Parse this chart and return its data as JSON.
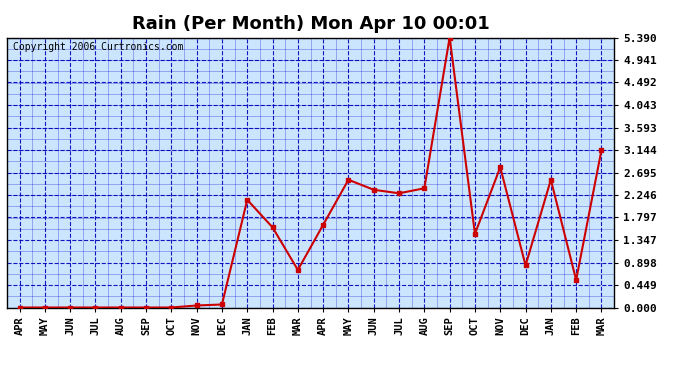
{
  "title": "Rain (Per Month) Mon Apr 10 00:01",
  "copyright": "Copyright 2006 Curtronics.com",
  "months": [
    "APR",
    "MAY",
    "JUN",
    "JUL",
    "AUG",
    "SEP",
    "OCT",
    "NOV",
    "DEC",
    "JAN",
    "FEB",
    "MAR",
    "APR",
    "MAY",
    "JUN",
    "JUL",
    "AUG",
    "SEP",
    "OCT",
    "NOV",
    "DEC",
    "JAN",
    "FEB",
    "MAR"
  ],
  "values": [
    0.0,
    0.0,
    0.0,
    0.0,
    0.0,
    0.0,
    0.0,
    0.04,
    0.06,
    2.15,
    1.6,
    0.75,
    1.65,
    2.55,
    2.35,
    2.28,
    2.38,
    5.39,
    1.47,
    2.8,
    0.84,
    2.55,
    0.55,
    3.14
  ],
  "yticks": [
    0.0,
    0.449,
    0.898,
    1.347,
    1.797,
    2.246,
    2.695,
    3.144,
    3.593,
    4.043,
    4.492,
    4.941,
    5.39
  ],
  "ymin": 0.0,
  "ymax": 5.39,
  "line_color": "#cc0000",
  "marker_color": "#cc0000",
  "bg_color": "#cce5ff",
  "outer_bg": "#ffffff",
  "grid_color": "#0000bb",
  "title_fontsize": 13,
  "axis_label_fontsize": 7.5,
  "ytick_fontsize": 8,
  "copyright_fontsize": 7
}
